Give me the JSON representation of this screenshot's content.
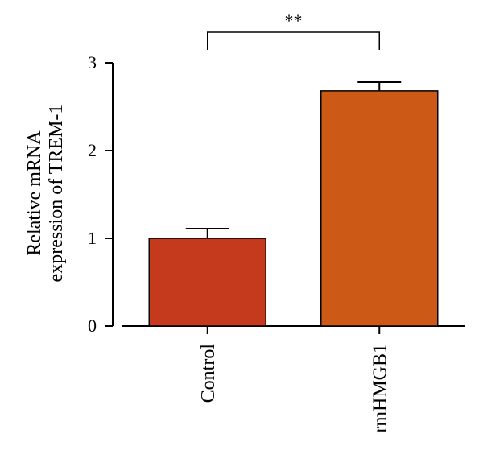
{
  "chart_data": {
    "type": "bar",
    "categories": [
      "Control",
      "rmHMGB1"
    ],
    "values": [
      1.0,
      2.68
    ],
    "errors": [
      0.11,
      0.1
    ],
    "colors": [
      "#C5391C",
      "#CC5A16"
    ],
    "ylabel_lines": [
      "Relative mRNA",
      "expression of TREM-1"
    ],
    "ylim": [
      0,
      3
    ],
    "yticks": [
      "0",
      "1",
      "2",
      "3"
    ],
    "significance": {
      "label": "**",
      "between": [
        0,
        1
      ]
    },
    "grid": false
  }
}
